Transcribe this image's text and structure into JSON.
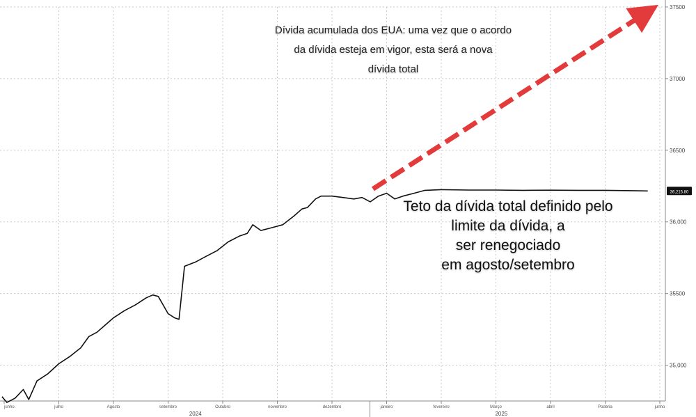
{
  "annotations": {
    "top_lines": [
      "Dívida acumulada dos EUA: uma vez que o acordo",
      "da dívida esteja em vigor, esta será a nova",
      "dívida total"
    ],
    "right_lines": [
      "Teto da dívida total definido pelo",
      "limite da dívida, a",
      "ser renegociado",
      "em agosto/setembro"
    ]
  },
  "colors": {
    "series": "#111111",
    "arrow": "#e33b3b",
    "grid": "#c8c8c8",
    "axis": "#888888",
    "text": "#222222"
  },
  "chart_data": {
    "type": "line",
    "title": "",
    "xlabel": "",
    "ylabel": "",
    "ylim": [
      34750,
      37500
    ],
    "y_ticks": [
      {
        "value": 35000,
        "label": "35,000"
      },
      {
        "value": 35500,
        "label": "35500"
      },
      {
        "value": 36000,
        "label": "36,000"
      },
      {
        "value": 36500,
        "label": "36500"
      },
      {
        "value": 37000,
        "label": "37000"
      },
      {
        "value": 37500,
        "label": "37500"
      }
    ],
    "x_ticks": [
      {
        "pos": 0,
        "label": "junho"
      },
      {
        "pos": 1,
        "label": "julho"
      },
      {
        "pos": 2,
        "label": "Agosto"
      },
      {
        "pos": 3,
        "label": "setembro"
      },
      {
        "pos": 4,
        "label": "Outubro"
      },
      {
        "pos": 5,
        "label": "novembro"
      },
      {
        "pos": 6,
        "label": "dezembro"
      },
      {
        "pos": 7,
        "label": "janeiro"
      },
      {
        "pos": 8,
        "label": "fevereiro"
      },
      {
        "pos": 9,
        "label": "Março"
      },
      {
        "pos": 10,
        "label": "abril"
      },
      {
        "pos": 11,
        "label": "Poderia"
      },
      {
        "pos": 12,
        "label": "junho"
      }
    ],
    "year_labels": [
      {
        "pos": 3.5,
        "label": "2024"
      },
      {
        "pos": 9.1,
        "label": "2025"
      }
    ],
    "last_value_label": "36,215.80",
    "series": [
      {
        "name": "",
        "x": [
          -0.04,
          0.05,
          0.2,
          0.35,
          0.45,
          0.6,
          0.8,
          1.0,
          1.2,
          1.4,
          1.55,
          1.7,
          1.85,
          2.0,
          2.2,
          2.4,
          2.6,
          2.72,
          2.82,
          3.0,
          3.12,
          3.2,
          3.3,
          3.5,
          3.7,
          3.9,
          4.1,
          4.3,
          4.45,
          4.55,
          4.7,
          4.9,
          5.1,
          5.3,
          5.45,
          5.55,
          5.7,
          5.8,
          6.0,
          6.2,
          6.4,
          6.55,
          6.7,
          6.85,
          7.0,
          7.15,
          7.3,
          7.5,
          7.7,
          8.0,
          8.5,
          9.0,
          9.5,
          10.0,
          10.5,
          11.0,
          11.5,
          11.78
        ],
        "y": [
          34780,
          34740,
          34770,
          34830,
          34760,
          34890,
          34940,
          35010,
          35060,
          35120,
          35200,
          35230,
          35280,
          35330,
          35380,
          35420,
          35470,
          35490,
          35480,
          35360,
          35330,
          35320,
          35690,
          35720,
          35760,
          35800,
          35860,
          35900,
          35920,
          35980,
          35940,
          35960,
          35980,
          36040,
          36090,
          36100,
          36160,
          36180,
          36180,
          36170,
          36160,
          36170,
          36140,
          36180,
          36200,
          36160,
          36180,
          36200,
          36220,
          36225,
          36222,
          36222,
          36220,
          36221,
          36220,
          36220,
          36218,
          36216
        ]
      }
    ],
    "projection": {
      "x_start": 6.75,
      "y_start": 36230,
      "x_end": 11.75,
      "y_end": 37460
    }
  }
}
